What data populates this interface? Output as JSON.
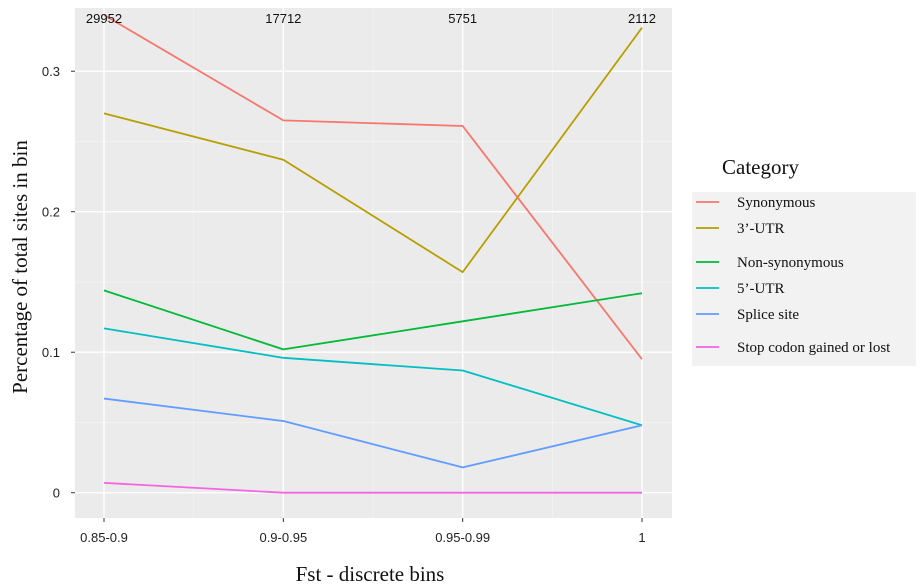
{
  "chart_data": {
    "type": "line",
    "xlabel": "Fst - discrete bins",
    "ylabel": "Percentage of total sites in bin",
    "categories": [
      "0.85-0.9",
      "0.9-0.95",
      "0.95-0.99",
      "1"
    ],
    "counts": [
      "29952",
      "17712",
      "5751",
      "2112"
    ],
    "ylim": [
      -0.018,
      0.345
    ],
    "yticks": [
      0,
      0.1,
      0.2,
      0.3
    ],
    "ytick_labels": [
      "0",
      "0.1",
      "0.2",
      "0.3"
    ],
    "grid": true,
    "legend": {
      "title": "Category",
      "position": "right"
    },
    "series": [
      {
        "name": "Synonymous",
        "color": "#F8766D",
        "values": [
          0.34,
          0.265,
          0.261,
          0.095
        ]
      },
      {
        "name": "3’-UTR",
        "color": "#B79F00",
        "values": [
          0.27,
          0.237,
          0.157,
          0.331
        ]
      },
      {
        "name": "Non-synonymous",
        "color": "#00BA38",
        "values": [
          0.144,
          0.102,
          0.122,
          0.142
        ]
      },
      {
        "name": "5’-UTR",
        "color": "#00BFC4",
        "values": [
          0.117,
          0.096,
          0.087,
          0.048
        ]
      },
      {
        "name": "Splice site",
        "color": "#619CFF",
        "values": [
          0.067,
          0.051,
          0.018,
          0.048
        ]
      },
      {
        "name": "Stop codon gained or lost",
        "color": "#F564E3",
        "values": [
          0.007,
          0.0,
          0.0,
          0.0
        ]
      }
    ]
  }
}
